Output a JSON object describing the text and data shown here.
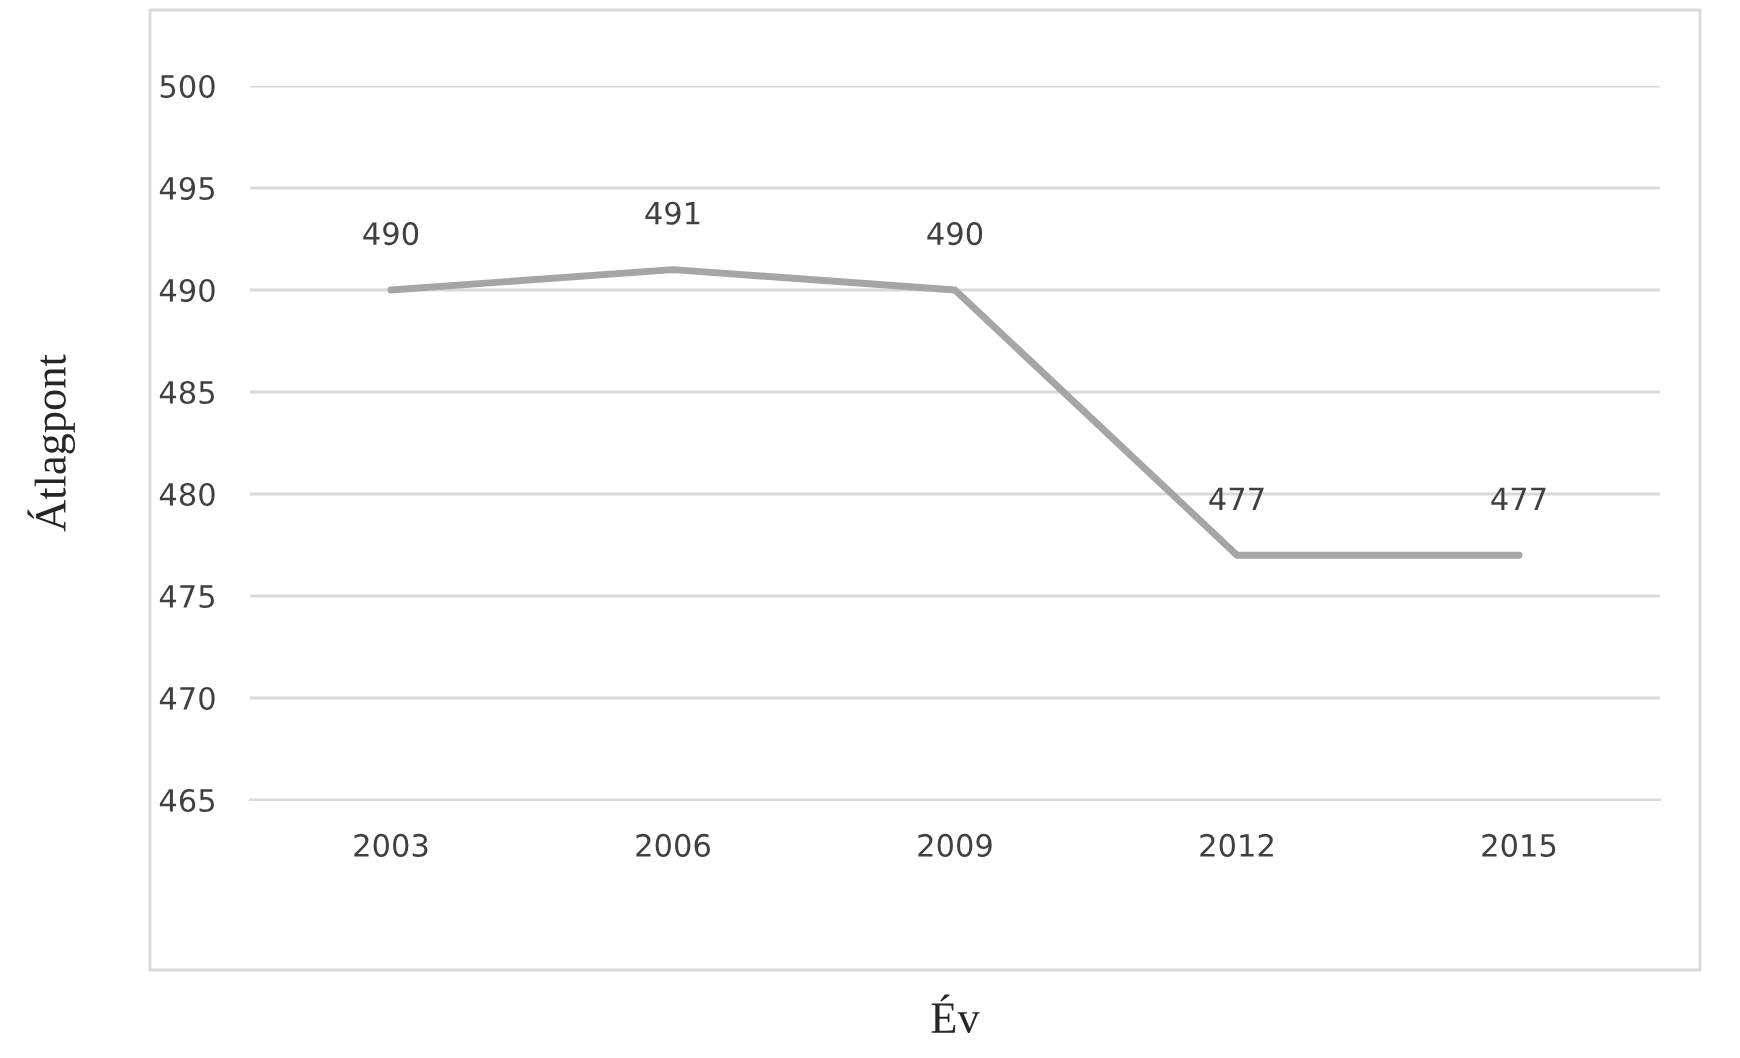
{
  "chart_data": {
    "type": "line",
    "xlabel": "Év",
    "ylabel": "Átlagpont",
    "categories": [
      "2003",
      "2006",
      "2009",
      "2012",
      "2015"
    ],
    "series": [
      {
        "color": "#a5a5a5",
        "values": [
          490,
          491,
          490,
          477,
          477
        ]
      }
    ],
    "ylim": [
      465,
      500
    ],
    "yticks": [
      465,
      470,
      475,
      480,
      485,
      490,
      495,
      500
    ],
    "grid": "y",
    "data_labels": true,
    "legend": false,
    "marker": "none",
    "line_style": "solid"
  }
}
